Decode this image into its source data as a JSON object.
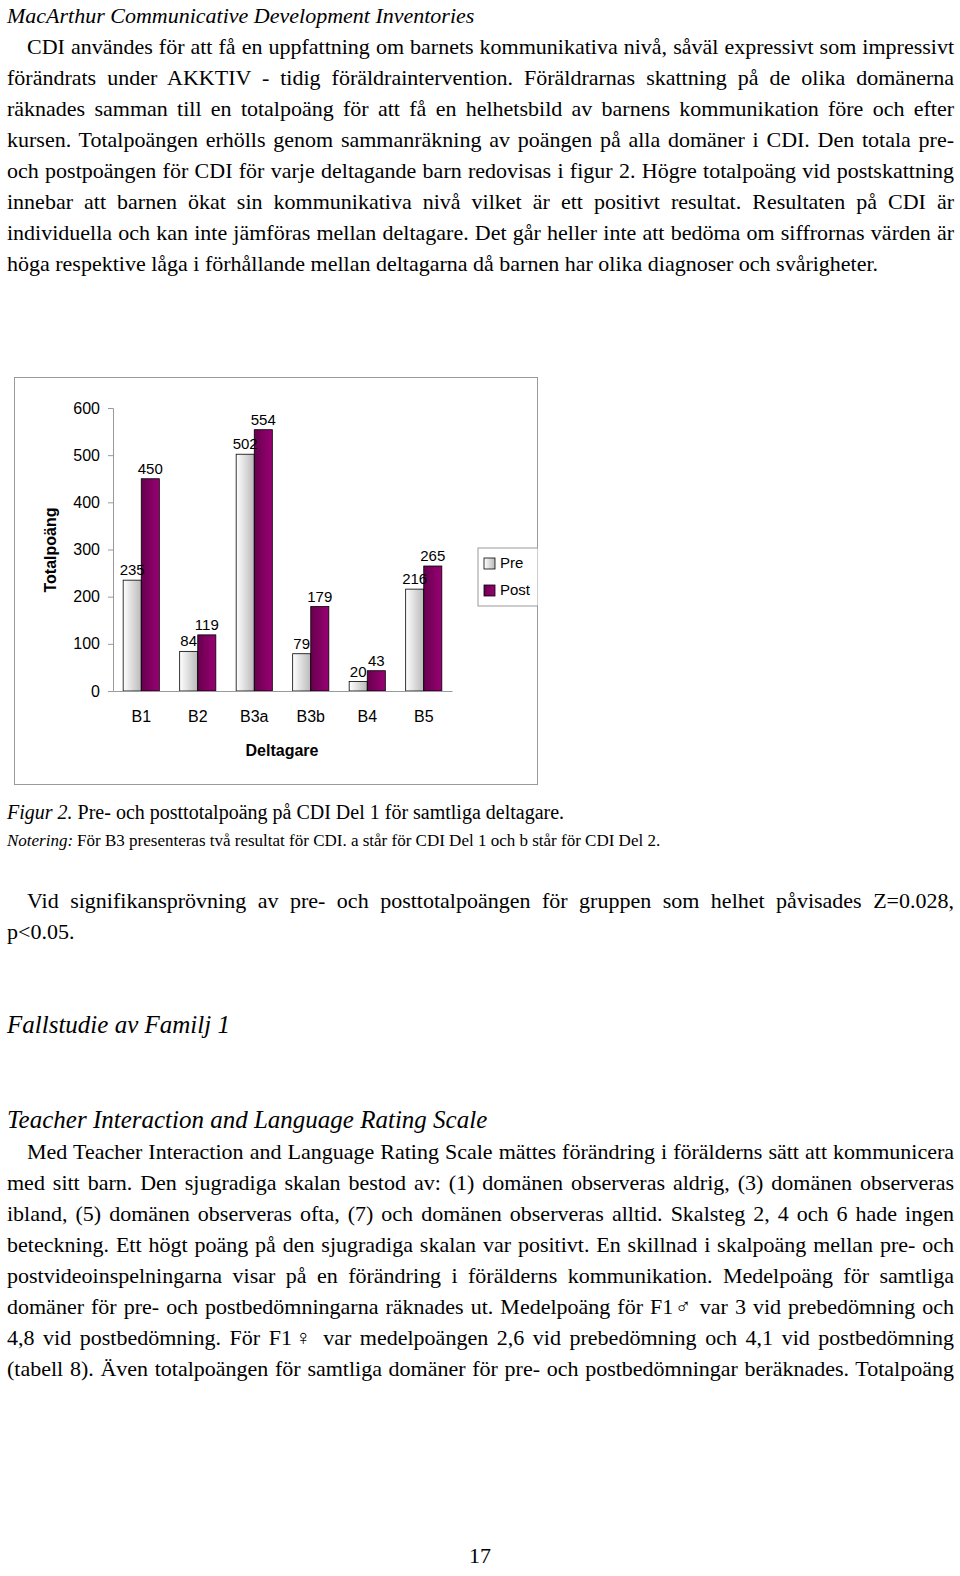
{
  "section1": {
    "heading": "MacArthur Communicative Development Inventories",
    "paragraph": "CDI användes för att få en uppfattning om barnets kommunikativa nivå, såväl expressivt som impressivt förändrats under AKKTIV - tidig föräldraintervention. Föräldrarnas skattning på de olika domänerna räknades samman till en totalpoäng för att få en helhetsbild av barnens kommunikation före och efter kursen. Totalpoängen erhölls genom sammanräkning av poängen på alla domäner i CDI. Den totala pre- och postpoängen för CDI för varje deltagande barn redovisas i figur 2. Högre totalpoäng vid postskattning innebar att barnen ökat sin kommunikativa nivå vilket är ett positivt resultat. Resultaten på CDI är individuella och kan inte jämföras mellan deltagare. Det går heller inte att bedöma om siffrornas värden är höga respektive låga i förhållande mellan deltagarna då barnen har olika diagnoser och svårigheter."
  },
  "chart_data": {
    "type": "bar",
    "x_label": "Deltagare",
    "y_label": "Totalpoäng",
    "categories": [
      "B1",
      "B2",
      "B3a",
      "B3b",
      "B4",
      "B5"
    ],
    "series": [
      {
        "name": "Pre",
        "color": "#ffffff",
        "values": [
          235,
          84,
          502,
          79,
          20,
          216
        ]
      },
      {
        "name": "Post",
        "color": "#800060",
        "values": [
          450,
          119,
          554,
          179,
          43,
          265
        ]
      }
    ],
    "ylim": [
      0,
      600
    ],
    "yticks": [
      0,
      100,
      200,
      300,
      400,
      500,
      600
    ],
    "grid": false,
    "legend": "right",
    "data_labels": true
  },
  "figure": {
    "label": "Figur 2.",
    "caption": "Pre- och posttotalpoäng på CDI Del 1 för samtliga deltagare.",
    "note_label": "Notering:",
    "note": "För B3 presenteras två resultat för CDI. a står för CDI Del 1 och b står för CDI Del 2."
  },
  "result": "Vid signifikansprövning av pre- och posttotalpoängen för gruppen som helhet påvisades Z=0.028, p<0.05.",
  "section2": {
    "heading": "Fallstudie av Familj 1"
  },
  "section3": {
    "heading": "Teacher Interaction and Language Rating Scale",
    "paragraph": "Med Teacher Interaction and Language Rating Scale mättes förändring i förälderns sätt att kommunicera med sitt barn. Den sjugradiga skalan bestod av: (1) domänen observeras aldrig, (3) domänen observeras ibland, (5) domänen observeras ofta, (7) och domänen observeras alltid. Skalsteg 2, 4 och 6 hade ingen beteckning. Ett högt poäng på den sjugradiga skalan var positivt. En skillnad i skalpoäng mellan pre- och postvideoinspelningarna visar på en förändring i förälderns kommunikation. Medelpoäng för samtliga domäner för pre- och postbedömningarna räknades ut. Medelpoäng för F1♂ var 3 vid prebedömning och 4,8 vid postbedömning. För F1♀ var medelpoängen 2,6 vid prebedömning och 4,1 vid postbedömning (tabell 8). Även totalpoängen för samtliga domäner för pre- och postbedömningar beräknades. Totalpoäng"
  },
  "page_number": "17"
}
